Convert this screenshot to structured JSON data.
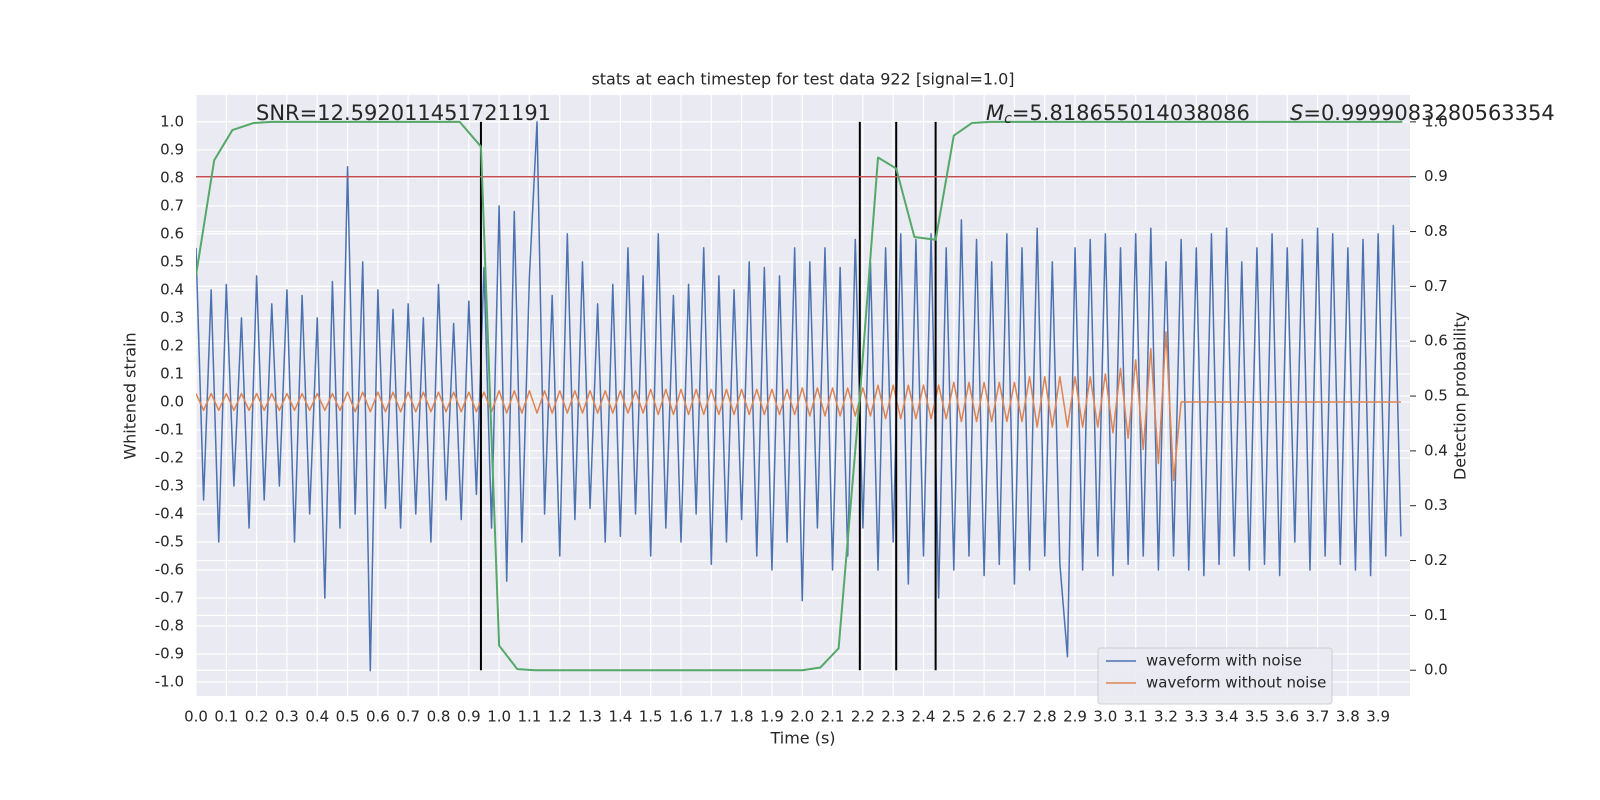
{
  "chart_data": {
    "type": "line",
    "title": "stats at each timestep for test data 922 [signal=1.0]",
    "xlabel": "Time (s)",
    "ylabel": "Whitened strain",
    "y2label": "Detection probability",
    "annotations": [
      {
        "text": "SNR=12.592011451721191"
      },
      {
        "symbol": "M",
        "subscript": "c",
        "text": "=5.818655014038086"
      },
      {
        "symbol": "S",
        "text": "=0.9999083280563354"
      }
    ],
    "x": [
      0,
      0.025,
      0.05,
      0.075,
      0.1,
      0.125,
      0.15,
      0.175,
      0.2,
      0.225,
      0.25,
      0.275,
      0.3,
      0.325,
      0.35,
      0.375,
      0.4,
      0.425,
      0.45,
      0.475,
      0.5,
      0.525,
      0.55,
      0.575,
      0.6,
      0.625,
      0.65,
      0.675,
      0.7,
      0.725,
      0.75,
      0.775,
      0.8,
      0.825,
      0.85,
      0.875,
      0.9,
      0.925,
      0.95,
      0.975,
      1.0,
      1.025,
      1.05,
      1.075,
      1.1,
      1.125,
      1.15,
      1.175,
      1.2,
      1.225,
      1.25,
      1.275,
      1.3,
      1.325,
      1.35,
      1.375,
      1.4,
      1.425,
      1.45,
      1.475,
      1.5,
      1.525,
      1.55,
      1.575,
      1.6,
      1.625,
      1.65,
      1.675,
      1.7,
      1.725,
      1.75,
      1.775,
      1.8,
      1.825,
      1.85,
      1.875,
      1.9,
      1.925,
      1.95,
      1.975,
      2.0,
      2.025,
      2.05,
      2.075,
      2.1,
      2.125,
      2.15,
      2.175,
      2.2,
      2.225,
      2.25,
      2.275,
      2.3,
      2.325,
      2.35,
      2.375,
      2.4,
      2.425,
      2.45,
      2.475,
      2.5,
      2.525,
      2.55,
      2.575,
      2.6,
      2.625,
      2.65,
      2.675,
      2.7,
      2.725,
      2.75,
      2.775,
      2.8,
      2.825,
      2.85,
      2.875,
      2.9,
      2.925,
      2.95,
      2.975,
      3.0,
      3.025,
      3.05,
      3.075,
      3.1,
      3.125,
      3.15,
      3.175,
      3.2,
      3.225,
      3.25,
      3.275,
      3.3,
      3.325,
      3.35,
      3.375,
      3.4,
      3.425,
      3.45,
      3.475,
      3.5,
      3.525,
      3.55,
      3.575,
      3.6,
      3.625,
      3.65,
      3.675,
      3.7,
      3.725,
      3.75,
      3.775,
      3.8,
      3.825,
      3.85,
      3.875,
      3.9,
      3.925,
      3.95,
      3.975
    ],
    "series": [
      {
        "name": "waveform with noise",
        "color": "#4c72b0",
        "values": [
          0.55,
          -0.35,
          0.4,
          -0.5,
          0.42,
          -0.3,
          0.3,
          -0.45,
          0.45,
          -0.35,
          0.35,
          -0.3,
          0.4,
          -0.5,
          0.38,
          -0.4,
          0.3,
          -0.7,
          0.43,
          -0.45,
          0.84,
          -0.4,
          0.5,
          -0.96,
          0.4,
          -0.38,
          0.33,
          -0.45,
          0.35,
          -0.4,
          0.3,
          -0.5,
          0.42,
          -0.35,
          0.28,
          -0.42,
          0.36,
          -0.33,
          0.48,
          -0.45,
          0.7,
          -0.64,
          0.68,
          -0.5,
          0.45,
          1.0,
          -0.4,
          0.38,
          -0.55,
          0.6,
          -0.42,
          0.5,
          -0.38,
          0.35,
          -0.5,
          0.42,
          -0.48,
          0.55,
          -0.4,
          0.45,
          -0.55,
          0.6,
          -0.45,
          0.38,
          -0.5,
          0.42,
          -0.4,
          0.55,
          -0.58,
          0.45,
          -0.5,
          0.4,
          -0.42,
          0.5,
          -0.55,
          0.48,
          -0.6,
          0.45,
          -0.5,
          0.55,
          -0.71,
          0.5,
          -0.45,
          0.55,
          -0.6,
          0.48,
          -0.55,
          0.58,
          -0.45,
          0.5,
          -0.6,
          0.55,
          -0.5,
          0.6,
          -0.65,
          0.58,
          -0.55,
          0.6,
          -0.7,
          0.55,
          -0.6,
          0.65,
          -0.55,
          0.58,
          -0.62,
          0.5,
          -0.58,
          0.6,
          -0.65,
          0.55,
          -0.6,
          0.62,
          -0.55,
          0.5,
          -0.58,
          -0.91,
          0.55,
          -0.6,
          0.58,
          -0.55,
          0.6,
          -0.62,
          0.55,
          -0.58,
          0.6,
          -0.55,
          0.62,
          -0.6,
          0.5,
          -0.55,
          0.58,
          -0.6,
          0.55,
          -0.62,
          0.6,
          -0.58,
          0.62,
          -0.55,
          0.5,
          -0.6,
          0.55,
          -0.58,
          0.6,
          -0.62,
          0.55,
          -0.5,
          0.58,
          -0.6,
          0.62,
          -0.55,
          0.6,
          -0.58,
          0.55,
          -0.6,
          0.58,
          -0.62,
          0.6,
          -0.55,
          0.63,
          -0.48
        ]
      },
      {
        "name": "waveform without noise",
        "color": "#dd8452",
        "values": [
          0.03,
          -0.03,
          0.03,
          -0.03,
          0.03,
          -0.03,
          0.03,
          -0.03,
          0.03,
          -0.03,
          0.03,
          -0.03,
          0.03,
          -0.03,
          0.03,
          -0.03,
          0.03,
          -0.03,
          0.03,
          -0.03,
          0.035,
          -0.035,
          0.035,
          -0.035,
          0.035,
          -0.035,
          0.035,
          -0.035,
          0.035,
          -0.035,
          0.035,
          -0.035,
          0.035,
          -0.035,
          0.035,
          -0.035,
          0.035,
          -0.035,
          0.035,
          -0.035,
          0.04,
          -0.04,
          0.04,
          -0.04,
          0.04,
          -0.04,
          0.04,
          -0.04,
          0.04,
          -0.04,
          0.04,
          -0.04,
          0.04,
          -0.04,
          0.04,
          -0.04,
          0.04,
          -0.04,
          0.04,
          -0.04,
          0.045,
          -0.045,
          0.045,
          -0.045,
          0.045,
          -0.045,
          0.045,
          -0.045,
          0.045,
          -0.045,
          0.045,
          -0.045,
          0.045,
          -0.045,
          0.045,
          -0.045,
          0.045,
          -0.045,
          0.045,
          -0.045,
          0.05,
          -0.05,
          0.05,
          -0.05,
          0.05,
          -0.05,
          0.05,
          -0.05,
          0.05,
          -0.05,
          0.06,
          -0.06,
          0.06,
          -0.06,
          0.06,
          -0.06,
          0.06,
          -0.06,
          0.06,
          -0.06,
          0.07,
          -0.07,
          0.07,
          -0.07,
          0.07,
          -0.07,
          0.07,
          -0.07,
          0.07,
          -0.07,
          0.09,
          -0.09,
          0.09,
          -0.09,
          0.09,
          -0.09,
          0.09,
          -0.09,
          0.09,
          -0.09,
          0.1,
          -0.11,
          0.12,
          -0.13,
          0.15,
          -0.17,
          0.19,
          -0.22,
          0.25,
          -0.28,
          0,
          0,
          0,
          0,
          0,
          0,
          0,
          0,
          0,
          0,
          0,
          0,
          0,
          0,
          0,
          0,
          0,
          0,
          0,
          0,
          0,
          0,
          0,
          0,
          0,
          0,
          0,
          0,
          0,
          0
        ]
      },
      {
        "color": "#55a868",
        "axis": "y2",
        "x": [
          0,
          0.06,
          0.12,
          0.19,
          0.25,
          0.31,
          0.37,
          0.44,
          0.5,
          0.56,
          0.62,
          0.69,
          0.75,
          0.81,
          0.87,
          0.94,
          1.0,
          1.06,
          1.12,
          1.19,
          1.25,
          1.5,
          1.75,
          2.0,
          2.06,
          2.12,
          2.19,
          2.25,
          2.31,
          2.37,
          2.44,
          2.5,
          2.56,
          2.62,
          3.0,
          3.5,
          3.98
        ],
        "values": [
          0.72,
          0.93,
          0.985,
          0.998,
          1.0,
          1.0,
          1.0,
          1.0,
          1.0,
          1.0,
          1.0,
          1.0,
          1.0,
          1.0,
          1.0,
          0.955,
          0.045,
          0.002,
          0.0,
          0.0,
          0.0,
          0.0,
          0.0,
          0.0,
          0.005,
          0.04,
          0.5,
          0.935,
          0.915,
          0.79,
          0.785,
          0.975,
          0.998,
          1.0,
          1.0,
          1.0,
          1.0
        ]
      }
    ],
    "threshold": {
      "value": 0.9,
      "axis": "y2",
      "color": "#c44e52"
    },
    "vlines": {
      "values": [
        0.94,
        2.19,
        2.31,
        2.44
      ],
      "color": "#000000",
      "span": [
        0,
        1
      ]
    },
    "xlim": [
      0,
      4.005
    ],
    "ylim": [
      -1.05,
      1.096
    ],
    "y2lim": [
      -0.047,
      1.049
    ],
    "xticks": [
      {
        "value": 0,
        "label": "0.0"
      },
      0.1,
      0.2,
      0.3,
      0.4,
      0.5,
      0.6,
      0.7,
      0.8,
      0.9,
      {
        "value": 1,
        "label": "1.0"
      },
      1.1,
      1.2,
      1.3,
      1.4,
      1.5,
      1.6,
      1.7,
      1.8,
      1.9,
      {
        "value": 2,
        "label": "2.0"
      },
      2.1,
      2.2,
      2.3,
      2.4,
      2.5,
      2.6,
      2.7,
      2.8,
      2.9,
      {
        "value": 3,
        "label": "3.0"
      },
      3.1,
      3.2,
      3.3,
      3.4,
      3.5,
      3.6,
      3.7,
      3.8,
      3.9
    ],
    "yticks": [
      {
        "value": -1,
        "label": "-1.0"
      },
      -0.9,
      -0.8,
      -0.7,
      -0.6,
      -0.5,
      -0.4,
      -0.3,
      -0.2,
      -0.1,
      {
        "value": 0,
        "label": "0.0"
      },
      0.1,
      0.2,
      0.3,
      0.4,
      0.5,
      0.6,
      0.7,
      0.8,
      0.9,
      {
        "value": 1,
        "label": "1.0"
      }
    ],
    "y2ticks": [
      {
        "value": 0,
        "label": "0.0"
      },
      0.1,
      0.2,
      0.3,
      0.4,
      0.5,
      0.6,
      0.7,
      0.8,
      0.9,
      {
        "value": 1,
        "label": "1.0"
      }
    ],
    "grid": true,
    "legend": "lower right"
  }
}
